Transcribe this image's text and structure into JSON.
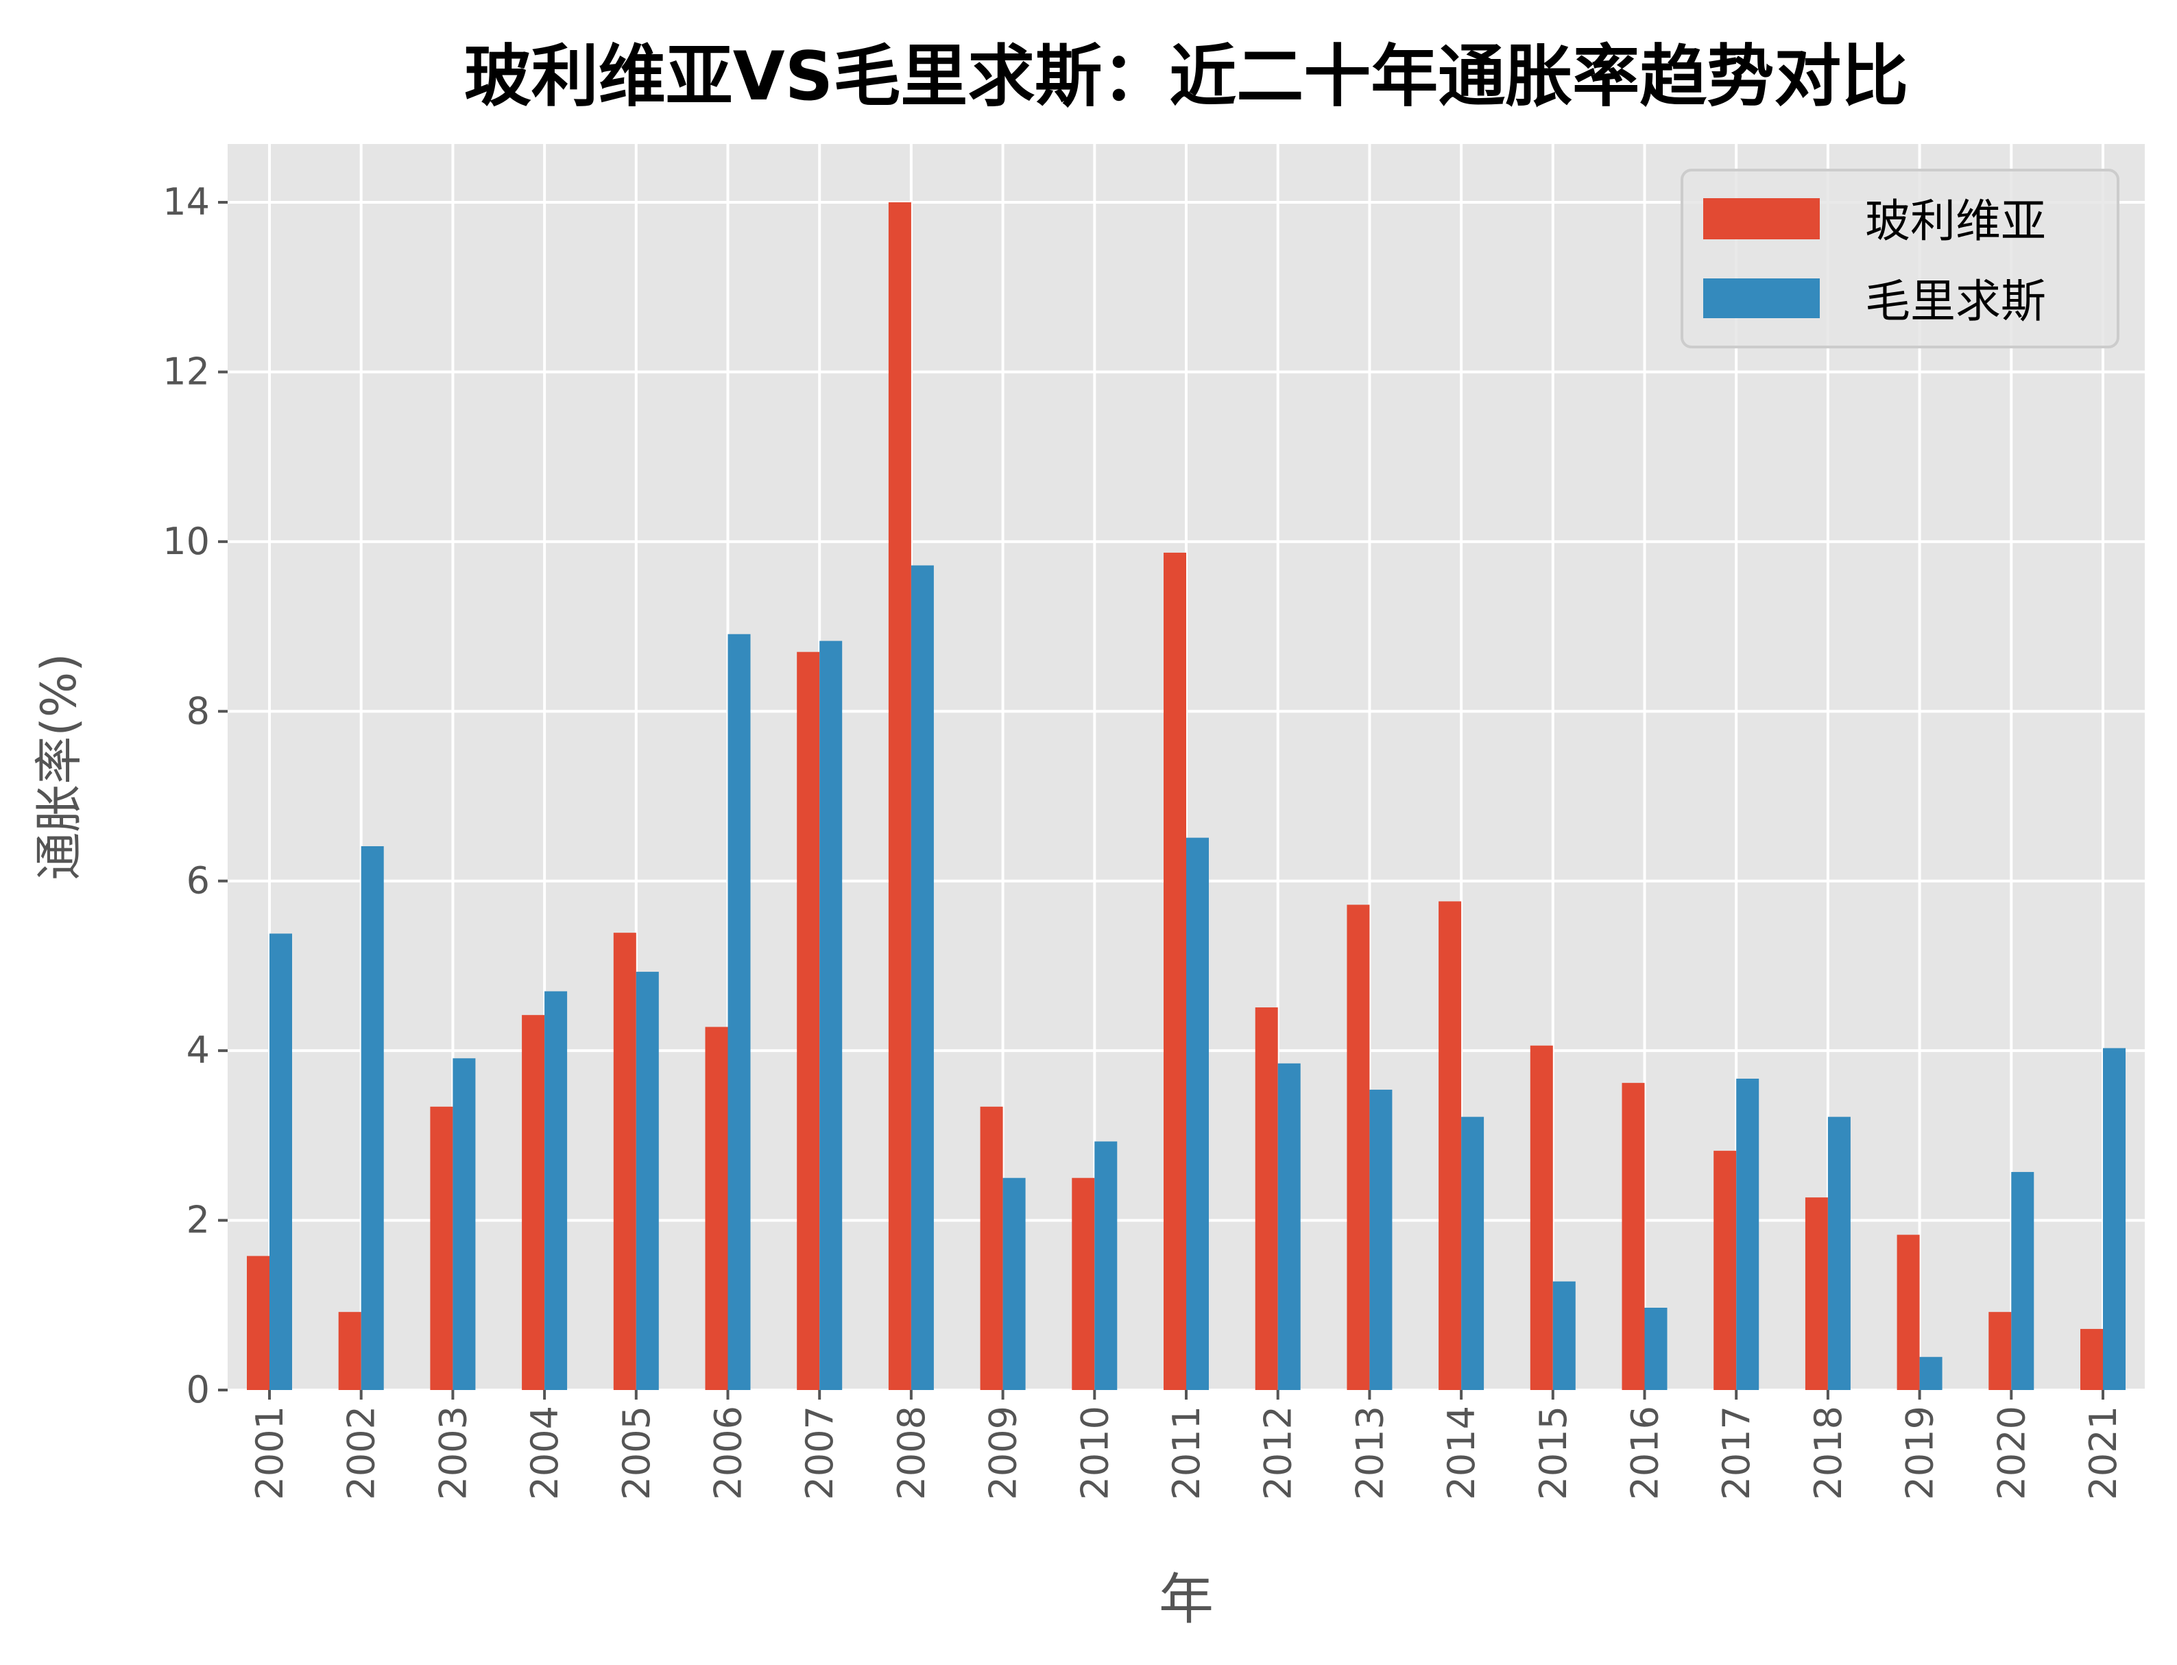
{
  "chart_data": {
    "type": "bar",
    "title": "玻利维亚VS毛里求斯：近二十年通胀率趋势对比",
    "xlabel": "年",
    "ylabel": "通胀率(%)",
    "ylim": [
      0,
      14.6
    ],
    "yticks": [
      "0",
      "2",
      "4",
      "6",
      "8",
      "10",
      "12",
      "14"
    ],
    "grid": true,
    "legend_position": "top-right",
    "categories": [
      "2001",
      "2002",
      "2003",
      "2004",
      "2005",
      "2006",
      "2007",
      "2008",
      "2009",
      "2010",
      "2011",
      "2012",
      "2013",
      "2014",
      "2015",
      "2016",
      "2017",
      "2018",
      "2019",
      "2020",
      "2021"
    ],
    "series": [
      {
        "name": "玻利维亚",
        "color": "#E24A33",
        "values": [
          1.58,
          0.92,
          3.34,
          4.42,
          5.39,
          4.28,
          8.7,
          14.0,
          3.34,
          2.5,
          9.87,
          4.51,
          5.72,
          5.76,
          4.06,
          3.62,
          2.82,
          2.27,
          1.83,
          0.92,
          0.72
        ]
      },
      {
        "name": "毛里求斯",
        "color": "#348ABD",
        "values": [
          5.38,
          6.41,
          3.91,
          4.7,
          4.93,
          8.91,
          8.83,
          9.72,
          2.5,
          2.93,
          6.51,
          3.85,
          3.54,
          3.22,
          1.28,
          0.97,
          3.67,
          3.22,
          0.39,
          2.57,
          4.03
        ]
      }
    ]
  }
}
